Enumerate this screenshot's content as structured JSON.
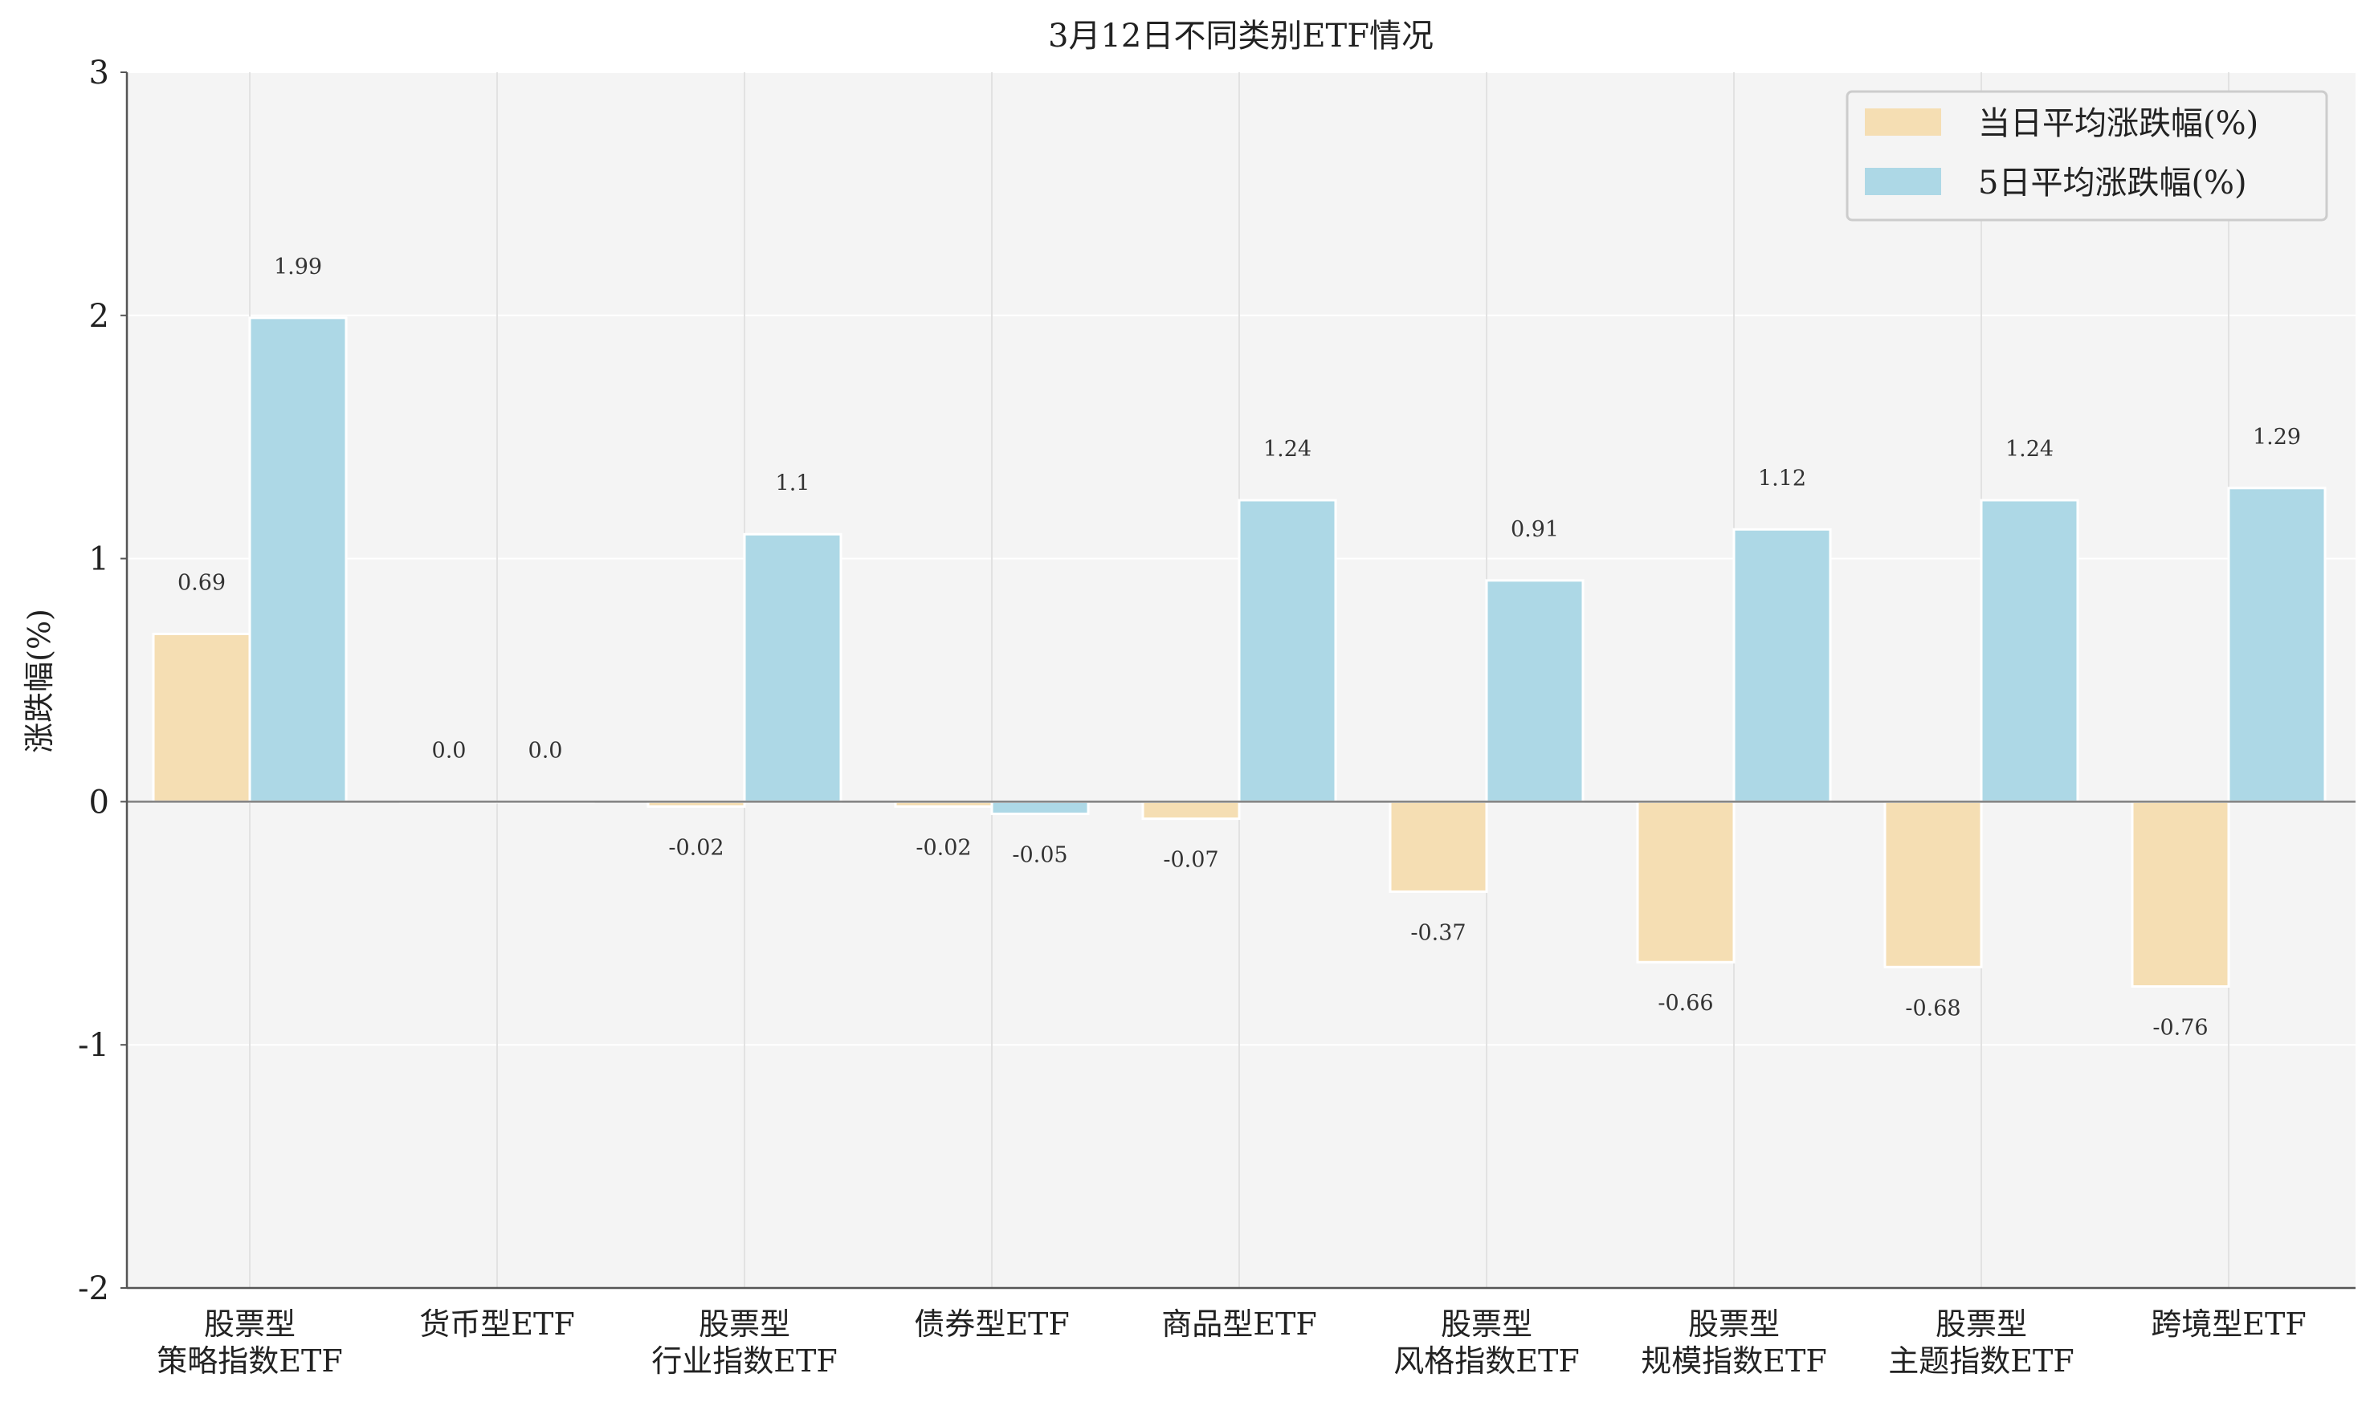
{
  "chart_data": {
    "type": "bar",
    "title": "3月12日不同类别ETF情况",
    "xlabel": "",
    "ylabel": "涨跌幅(%)",
    "ylim": [
      -2,
      3
    ],
    "yticks": [
      3,
      2,
      1,
      0,
      -1,
      -2
    ],
    "grid": true,
    "legend_position": "top-right",
    "categories": [
      [
        "股票型",
        "策略指数ETF"
      ],
      [
        "货币型ETF"
      ],
      [
        "股票型",
        "行业指数ETF"
      ],
      [
        "债券型ETF"
      ],
      [
        "商品型ETF"
      ],
      [
        "股票型",
        "风格指数ETF"
      ],
      [
        "股票型",
        "规模指数ETF"
      ],
      [
        "股票型",
        "主题指数ETF"
      ],
      [
        "跨境型ETF"
      ]
    ],
    "series": [
      {
        "name": "当日平均涨跌幅(%)",
        "color": "#F5DEB3",
        "values": [
          0.69,
          0.0,
          -0.02,
          -0.02,
          -0.07,
          -0.37,
          -0.66,
          -0.68,
          -0.76
        ],
        "labels": [
          "0.69",
          "0.0",
          "-0.02",
          "-0.02",
          "-0.07",
          "-0.37",
          "-0.66",
          "-0.68",
          "-0.76"
        ]
      },
      {
        "name": "5日平均涨跌幅(%)",
        "color": "#ADD8E6",
        "values": [
          1.99,
          0.0,
          1.1,
          -0.05,
          1.24,
          0.91,
          1.12,
          1.24,
          1.29
        ],
        "labels": [
          "1.99",
          "0.0",
          "1.1",
          "-0.05",
          "1.24",
          "0.91",
          "1.12",
          "1.24",
          "1.29"
        ]
      }
    ],
    "background_color": "#F4F4F4",
    "grid_color": "#FFFFFF",
    "zero_line_color": "#808080"
  }
}
